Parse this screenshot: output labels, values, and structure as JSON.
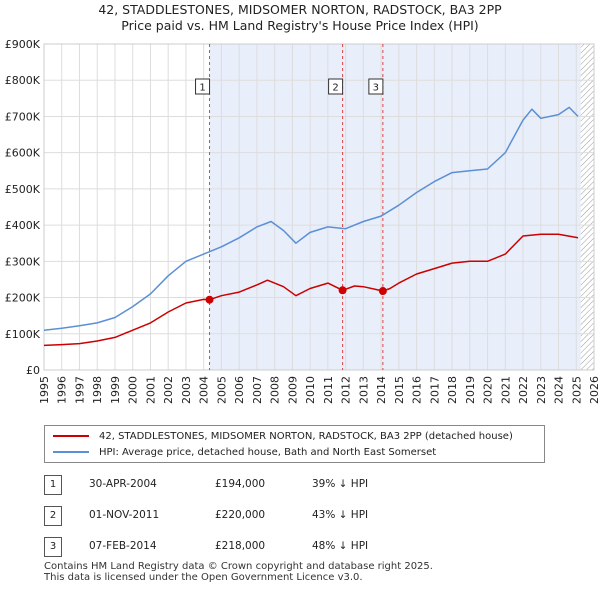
{
  "title_line1": "42, STADDLESTONES, MIDSOMER NORTON, RADSTOCK, BA3 2PP",
  "title_line2": "Price paid vs. HM Land Registry's House Price Index (HPI)",
  "chart_data": {
    "type": "line",
    "x_range": [
      1995,
      2026
    ],
    "ylim": [
      0,
      900000
    ],
    "y_ticks": [
      0,
      100000,
      200000,
      300000,
      400000,
      500000,
      600000,
      700000,
      800000,
      900000
    ],
    "y_tick_labels": [
      "£0",
      "£100K",
      "£200K",
      "£300K",
      "£400K",
      "£500K",
      "£600K",
      "£700K",
      "£800K",
      "£900K"
    ],
    "x_ticks": [
      1995,
      1996,
      1997,
      1998,
      1999,
      2000,
      2001,
      2002,
      2003,
      2004,
      2005,
      2006,
      2007,
      2008,
      2009,
      2010,
      2011,
      2012,
      2013,
      2014,
      2015,
      2016,
      2017,
      2018,
      2019,
      2020,
      2021,
      2022,
      2023,
      2024,
      2025,
      2026
    ],
    "grid": true,
    "highlight_range": [
      2004.33,
      2025.25
    ],
    "hatch_from": 2025.25,
    "series": [
      {
        "name": "42, STADDLESTONES, MIDSOMER NORTON, RADSTOCK, BA3 2PP (detached house)",
        "color": "#cc0000",
        "x": [
          1995,
          1996,
          1997,
          1998,
          1999,
          2000,
          2001,
          2002,
          2003,
          2004,
          2004.33,
          2005,
          2006,
          2007,
          2007.6,
          2008.5,
          2009.2,
          2010,
          2011,
          2011.83,
          2012.5,
          2013,
          2014.1,
          2014.5,
          2015,
          2016,
          2017,
          2018,
          2019,
          2020,
          2021,
          2022,
          2023,
          2024,
          2025.1
        ],
        "values": [
          68000,
          70000,
          73000,
          80000,
          90000,
          110000,
          130000,
          160000,
          185000,
          195000,
          194000,
          205000,
          215000,
          235000,
          248000,
          230000,
          205000,
          225000,
          240000,
          220000,
          232000,
          230000,
          218000,
          225000,
          240000,
          265000,
          280000,
          295000,
          300000,
          300000,
          320000,
          370000,
          375000,
          375000,
          365000
        ]
      },
      {
        "name": "HPI: Average price, detached house, Bath and North East Somerset",
        "color": "#5b8fd6",
        "x": [
          1995,
          1996,
          1997,
          1998,
          1999,
          2000,
          2001,
          2002,
          2003,
          2004,
          2005,
          2006,
          2007,
          2007.8,
          2008.5,
          2009.2,
          2010,
          2011,
          2012,
          2013,
          2014,
          2015,
          2016,
          2017,
          2018,
          2019,
          2020,
          2021,
          2022,
          2022.5,
          2023,
          2024,
          2024.6,
          2025.1
        ],
        "values": [
          110000,
          115000,
          122000,
          130000,
          145000,
          175000,
          210000,
          260000,
          300000,
          320000,
          340000,
          365000,
          395000,
          410000,
          385000,
          350000,
          380000,
          395000,
          390000,
          410000,
          425000,
          455000,
          490000,
          520000,
          545000,
          550000,
          555000,
          600000,
          690000,
          720000,
          695000,
          705000,
          725000,
          700000
        ]
      }
    ],
    "sale_markers": [
      {
        "label": "1",
        "x": 2004.33,
        "value": 194000
      },
      {
        "label": "2",
        "x": 2011.83,
        "value": 220000
      },
      {
        "label": "3",
        "x": 2014.1,
        "value": 218000
      }
    ]
  },
  "legend": {
    "property": "42, STADDLESTONES, MIDSOMER NORTON, RADSTOCK, BA3 2PP (detached house)",
    "hpi": "HPI: Average price, detached house, Bath and North East Somerset"
  },
  "sales": [
    {
      "num": "1",
      "date": "30-APR-2004",
      "price": "£194,000",
      "hpi": "39% ↓ HPI"
    },
    {
      "num": "2",
      "date": "01-NOV-2011",
      "price": "£220,000",
      "hpi": "43% ↓ HPI"
    },
    {
      "num": "3",
      "date": "07-FEB-2014",
      "price": "£218,000",
      "hpi": "48% ↓ HPI"
    }
  ],
  "footer_line1": "Contains HM Land Registry data © Crown copyright and database right 2025.",
  "footer_line2": "This data is licensed under the Open Government Licence v3.0."
}
